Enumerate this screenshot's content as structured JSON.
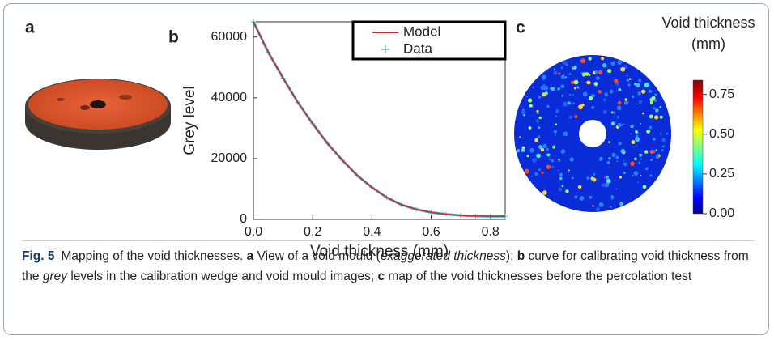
{
  "panel_labels": [
    "a",
    "b",
    "c"
  ],
  "chart_data": {
    "type": "line",
    "xlabel": "Void thickness (mm)",
    "ylabel": "Grey level",
    "xlim": [
      0,
      0.85
    ],
    "ylim": [
      0,
      65000
    ],
    "xticks": [
      {
        "value": 0,
        "label": "0.0"
      },
      0.2,
      0.4,
      0.6,
      0.8
    ],
    "yticks": [
      0,
      20000,
      40000,
      60000
    ],
    "legend": "upper right",
    "x": [
      0,
      0.05,
      0.1,
      0.15,
      0.2,
      0.25,
      0.3,
      0.35,
      0.4,
      0.45,
      0.5,
      0.55,
      0.6,
      0.65,
      0.7,
      0.75,
      0.8,
      0.85
    ],
    "series": [
      {
        "name": "Model",
        "color": "#d62728",
        "marker": "line",
        "values": [
          65000,
          55000,
          46500,
          38500,
          31500,
          25000,
          19500,
          14500,
          10500,
          7200,
          4800,
          3300,
          2300,
          1700,
          1300,
          1100,
          1000,
          1000
        ]
      },
      {
        "name": "Data",
        "color": "#3fb8c8",
        "marker": "+",
        "values": [
          65000,
          55000,
          46500,
          38500,
          31500,
          25000,
          19500,
          14500,
          10500,
          7200,
          4800,
          3300,
          2300,
          1700,
          1300,
          1100,
          1000,
          1000
        ]
      }
    ]
  },
  "colorbar": {
    "title": "Void thickness (mm)",
    "lim": [
      0,
      0.84
    ],
    "ticks": [
      {
        "value": 0,
        "label": "0.00"
      },
      {
        "value": 0.25,
        "label": "0.25"
      },
      {
        "value": 0.5,
        "label": "0.50"
      },
      {
        "value": 0.75,
        "label": "0.75"
      }
    ]
  },
  "caption": {
    "label": "Fig. 5",
    "parts": [
      {
        "text": "Mapping of the void thicknesses. ",
        "style": "normal"
      },
      {
        "text": "a",
        "style": "bold"
      },
      {
        "text": " View of a void mould (",
        "style": "normal"
      },
      {
        "text": "exaggerated thickness",
        "style": "italic"
      },
      {
        "text": "); ",
        "style": "normal"
      },
      {
        "text": "b",
        "style": "bold"
      },
      {
        "text": " curve for calibrating void thickness from the ",
        "style": "normal"
      },
      {
        "text": "grey",
        "style": "italic"
      },
      {
        "text": " levels in the calibration wedge and void mould images; ",
        "style": "normal"
      },
      {
        "text": "c",
        "style": "bold"
      },
      {
        "text": " map of the void thicknesses before the percolation test",
        "style": "normal"
      }
    ]
  }
}
